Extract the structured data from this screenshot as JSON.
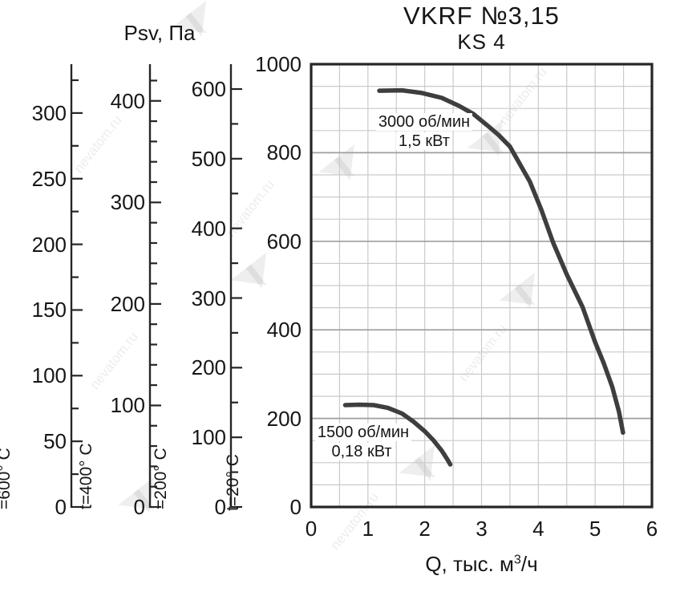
{
  "title": "VKRF №3,15",
  "subtitle": "KS 4",
  "x_axis_title": {
    "pre": "Q, тыс. м",
    "sup": "3",
    "post": "/ч"
  },
  "watermark": {
    "text": "nevatom.ru",
    "logo_glyph": "◥◤"
  },
  "colors": {
    "curve": "#3e3e3e",
    "axis": "#262626",
    "grid_minor": "#cacaca",
    "grid_major": "#9e9e9e",
    "text": "#161616"
  },
  "chart_data": {
    "type": "line",
    "title": "VKRF №3,15",
    "subtitle": "KS 4",
    "ylabel": "Psv, Па",
    "xlabel": "Q, тыс. м³/ч",
    "xlim": [
      0,
      6
    ],
    "ylim": [
      0,
      1000
    ],
    "grid": true,
    "x_tick_labels": [
      "0",
      "1",
      "2",
      "3",
      "4",
      "5",
      "6"
    ],
    "x_tick_values": [
      0,
      1,
      2,
      3,
      4,
      5,
      6
    ],
    "x_minor_step": 0.5,
    "y_tick_labels": [
      "0",
      "200",
      "400",
      "600",
      "800",
      "1000"
    ],
    "y_tick_values": [
      0,
      200,
      400,
      600,
      800,
      1000
    ],
    "y_minor_step": 50,
    "series": [
      {
        "name": "3000 об/мин",
        "power": "1,5 кВт",
        "points": [
          [
            1.2,
            940
          ],
          [
            1.6,
            941
          ],
          [
            1.95,
            935
          ],
          [
            2.3,
            924
          ],
          [
            2.6,
            906
          ],
          [
            2.85,
            888
          ],
          [
            3.1,
            862
          ],
          [
            3.3,
            840
          ],
          [
            3.5,
            814
          ],
          [
            3.65,
            780
          ],
          [
            3.85,
            735
          ],
          [
            4.05,
            672
          ],
          [
            4.26,
            597
          ],
          [
            4.5,
            525
          ],
          [
            4.78,
            451
          ],
          [
            5.0,
            372
          ],
          [
            5.15,
            325
          ],
          [
            5.3,
            272
          ],
          [
            5.42,
            215
          ],
          [
            5.49,
            168
          ]
        ]
      },
      {
        "name": "1500 об/мин",
        "power": "0,18 кВт",
        "points": [
          [
            0.6,
            230
          ],
          [
            0.85,
            231
          ],
          [
            1.1,
            230
          ],
          [
            1.35,
            224
          ],
          [
            1.6,
            211
          ],
          [
            1.8,
            193
          ],
          [
            2.0,
            171
          ],
          [
            2.15,
            151
          ],
          [
            2.3,
            127
          ],
          [
            2.4,
            107
          ],
          [
            2.45,
            96
          ]
        ]
      }
    ],
    "temperature_scales": [
      {
        "label": "=600° C",
        "labels": [
          0,
          50,
          100,
          150,
          200,
          250,
          300
        ],
        "minor_step": 25,
        "max_tick": 325
      },
      {
        "label": "t=400° C",
        "labels": [
          0,
          100,
          200,
          300,
          400
        ],
        "minor_step": 20,
        "max_tick": 420
      },
      {
        "label": "=200° C",
        "labels": [
          0,
          100,
          200,
          300,
          400,
          500,
          600
        ],
        "minor_step": 50,
        "max_tick": 600
      },
      {
        "label": "t=20° C",
        "labels": [
          0,
          200,
          400,
          600,
          800,
          1000
        ],
        "minor_step": null,
        "max_tick": 1000
      }
    ]
  }
}
